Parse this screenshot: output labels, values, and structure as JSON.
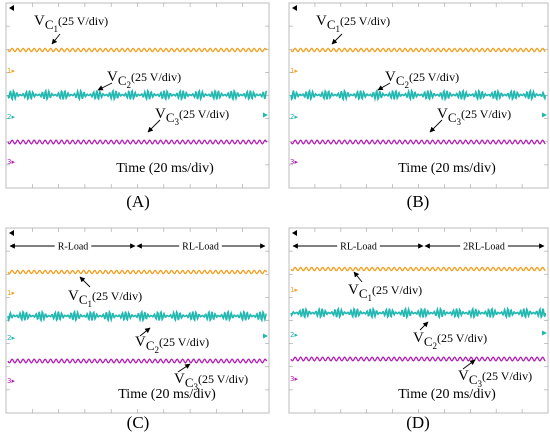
{
  "colors": {
    "ch1": "#f0a020",
    "ch2": "#20b8b0",
    "ch3": "#b020b0",
    "border": "#c8c8c8",
    "grid": "#a0a0a0",
    "text": "#000000"
  },
  "chart_data": [
    {
      "type": "line",
      "caption": "(A)",
      "xlabel": "Time (20 ms/div)",
      "load_labels": [],
      "channel_markers": [
        "1",
        "2",
        "3"
      ],
      "series": [
        {
          "id": "vc1",
          "name_base": "V",
          "name_sub": "C",
          "name_num": "1",
          "scale": "(25 V/div)"
        },
        {
          "id": "vc2",
          "name_base": "V",
          "name_sub": "C",
          "name_num": "2",
          "scale": "(25 V/div)"
        },
        {
          "id": "vc3",
          "name_base": "V",
          "name_sub": "C",
          "name_num": "3",
          "scale": "(25 V/div)"
        }
      ]
    },
    {
      "type": "line",
      "caption": "(B)",
      "xlabel": "Time (20 ms/div)",
      "load_labels": [],
      "channel_markers": [
        "1",
        "2",
        "3"
      ],
      "series": [
        {
          "id": "vc1",
          "name_base": "V",
          "name_sub": "C",
          "name_num": "1",
          "scale": "(25 V/div)"
        },
        {
          "id": "vc2",
          "name_base": "V",
          "name_sub": "C",
          "name_num": "2",
          "scale": "(25 V/div)"
        },
        {
          "id": "vc3",
          "name_base": "V",
          "name_sub": "C",
          "name_num": "3",
          "scale": "(25 V/div)"
        }
      ]
    },
    {
      "type": "line",
      "caption": "(C)",
      "xlabel": "Time (20 ms/div)",
      "load_labels": [
        "R-Load",
        "RL-Load"
      ],
      "channel_markers": [
        "1",
        "2",
        "3"
      ],
      "series": [
        {
          "id": "vc1",
          "name_base": "V",
          "name_sub": "C",
          "name_num": "1",
          "scale": "(25 V/div)"
        },
        {
          "id": "vc2",
          "name_base": "V",
          "name_sub": "C",
          "name_num": "2",
          "scale": "(25 V/div)"
        },
        {
          "id": "vc3",
          "name_base": "V",
          "name_sub": "C",
          "name_num": "3",
          "scale": "(25 V/div)"
        }
      ]
    },
    {
      "type": "line",
      "caption": "(D)",
      "xlabel": "Time (20 ms/div)",
      "load_labels": [
        "RL-Load",
        "2RL-Load"
      ],
      "channel_markers": [
        "1",
        "2",
        "3"
      ],
      "series": [
        {
          "id": "vc1",
          "name_base": "V",
          "name_sub": "C",
          "name_num": "1",
          "scale": "(25 V/div)"
        },
        {
          "id": "vc2",
          "name_base": "V",
          "name_sub": "C",
          "name_num": "2",
          "scale": "(25 V/div)"
        },
        {
          "id": "vc3",
          "name_base": "V",
          "name_sub": "C",
          "name_num": "3",
          "scale": "(25 V/div)"
        }
      ]
    }
  ]
}
